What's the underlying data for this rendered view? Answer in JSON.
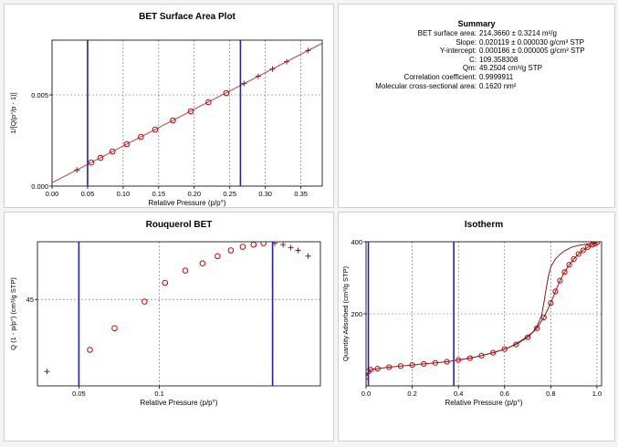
{
  "summary": {
    "title": "Summary",
    "rows": [
      {
        "label": "BET surface area:",
        "value": "214.3660 ± 0.3214 m²/g"
      },
      {
        "label": "Slope:",
        "value": "0.020119 ± 0.000030 g/cm³ STP"
      },
      {
        "label": "Y-intercept:",
        "value": "0.000186 ± 0.000005 g/cm³ STP"
      },
      {
        "label": "C:",
        "value": "109.358308"
      },
      {
        "label": "Qm:",
        "value": "49.2504 cm³/g STP"
      },
      {
        "label": "Correlation coefficient:",
        "value": "0.9999911"
      },
      {
        "label": "Molecular cross-sectional area:",
        "value": "0.1620 nm²"
      }
    ]
  },
  "chart_data": [
    {
      "id": "bet",
      "type": "scatter",
      "title": "BET Surface Area Plot",
      "xlabel": "Relative Pressure (p/p°)",
      "ylabel": "1/[Q(p°/p - 1)]",
      "xlim": [
        0.0,
        0.38
      ],
      "ylim": [
        0.0,
        0.008
      ],
      "xticks": [
        0.0,
        0.05,
        0.1,
        0.15,
        0.2,
        0.25,
        0.3,
        0.35
      ],
      "xtick_labels": [
        "0.00",
        "0.05",
        "0.10",
        "0.15",
        "0.20",
        "0.25",
        "0.30",
        "0.35"
      ],
      "yticks": [
        0.0,
        0.005
      ],
      "ytick_labels": [
        "0.000",
        "0.005"
      ],
      "grid": "dashed",
      "fit_line": {
        "slope": 0.020119,
        "intercept": 0.000186
      },
      "vlines": [
        0.05,
        0.265
      ],
      "colors": {
        "points": "#d00000",
        "fit": "#c04040",
        "vline": "#2020c8"
      },
      "series": [
        {
          "marker": "plus",
          "x": [
            0.035
          ],
          "y": [
            0.00089
          ]
        },
        {
          "marker": "circle",
          "x": [
            0.055,
            0.068,
            0.085,
            0.105,
            0.125,
            0.145,
            0.17,
            0.195,
            0.22,
            0.245
          ],
          "y": [
            0.00129,
            0.00155,
            0.0019,
            0.0023,
            0.0027,
            0.0031,
            0.0036,
            0.0041,
            0.0046,
            0.0051
          ]
        },
        {
          "marker": "plus",
          "x": [
            0.27,
            0.29,
            0.31,
            0.33,
            0.36
          ],
          "y": [
            0.00562,
            0.00602,
            0.00642,
            0.00682,
            0.00743
          ]
        }
      ]
    },
    {
      "id": "rouq",
      "type": "scatter",
      "title": "Rouquerol BET",
      "xlabel": "Relative Pressure (p/p°)",
      "ylabel": "Q (1 - p/p°) (cm³/g STP)",
      "xlog": true,
      "xlim": [
        0.035,
        0.4
      ],
      "ylim": [
        33,
        53
      ],
      "xticks": [
        0.05,
        0.1
      ],
      "xtick_labels": [
        "0.05",
        "0.1"
      ],
      "yticks": [
        45
      ],
      "ytick_labels": [
        "45"
      ],
      "grid": "dashed",
      "vlines": [
        0.05,
        0.265
      ],
      "colors": {
        "points": "#d00000",
        "vline": "#2020c8"
      },
      "series": [
        {
          "marker": "plus",
          "x": [
            0.038
          ],
          "y": [
            35.0
          ]
        },
        {
          "marker": "circle",
          "x": [
            0.055,
            0.068,
            0.088,
            0.105,
            0.125,
            0.145,
            0.165,
            0.185,
            0.205,
            0.225,
            0.245
          ],
          "y": [
            38.0,
            41.0,
            44.7,
            47.3,
            49.0,
            50.0,
            51.0,
            51.8,
            52.3,
            52.6,
            52.8
          ]
        },
        {
          "marker": "plus",
          "x": [
            0.27,
            0.29,
            0.31,
            0.33,
            0.36
          ],
          "y": [
            52.8,
            52.6,
            52.2,
            51.8,
            51.0
          ]
        }
      ]
    },
    {
      "id": "iso",
      "type": "line",
      "title": "Isotherm",
      "xlabel": "Relative Pressure (p/p°)",
      "ylabel": "Quantity Adsorbed (cm³/g STP)",
      "xlim": [
        0.0,
        1.02
      ],
      "ylim": [
        0,
        400
      ],
      "xticks": [
        0.0,
        0.2,
        0.4,
        0.6,
        0.8,
        1.0
      ],
      "xtick_labels": [
        "0.0",
        "0.2",
        "0.4",
        "0.6",
        "0.8",
        "1.0"
      ],
      "yticks": [
        200,
        400
      ],
      "ytick_labels": [
        "200",
        "400"
      ],
      "grid": "dashed",
      "vlines": [
        0.01,
        0.38
      ],
      "colors": {
        "points": "#d00000",
        "line": "#8b1a1a",
        "vline": "#2020c8"
      },
      "series": [
        {
          "kind": "adsorption",
          "x": [
            0.0,
            0.01,
            0.02,
            0.05,
            0.1,
            0.15,
            0.2,
            0.25,
            0.3,
            0.35,
            0.4,
            0.45,
            0.5,
            0.55,
            0.6,
            0.65,
            0.7,
            0.74,
            0.77,
            0.8,
            0.82,
            0.84,
            0.86,
            0.88,
            0.9,
            0.92,
            0.94,
            0.96,
            0.98,
            0.99,
            1.0
          ],
          "y": [
            25,
            40,
            45,
            48,
            52,
            55,
            58,
            61,
            64,
            67,
            72,
            77,
            84,
            92,
            102,
            115,
            135,
            160,
            190,
            230,
            262,
            292,
            316,
            336,
            352,
            366,
            376,
            385,
            392,
            395,
            398
          ]
        },
        {
          "kind": "desorption",
          "x": [
            1.0,
            0.98,
            0.95,
            0.92,
            0.89,
            0.86,
            0.84,
            0.82,
            0.8,
            0.79,
            0.78,
            0.77,
            0.76,
            0.74,
            0.72,
            0.7,
            0.67,
            0.63,
            0.6,
            0.55,
            0.5,
            0.45,
            0.4
          ],
          "y": [
            398,
            396,
            393,
            390,
            385,
            375,
            365,
            352,
            330,
            305,
            270,
            230,
            195,
            165,
            148,
            138,
            125,
            110,
            102,
            92,
            84,
            77,
            72
          ]
        }
      ]
    }
  ]
}
